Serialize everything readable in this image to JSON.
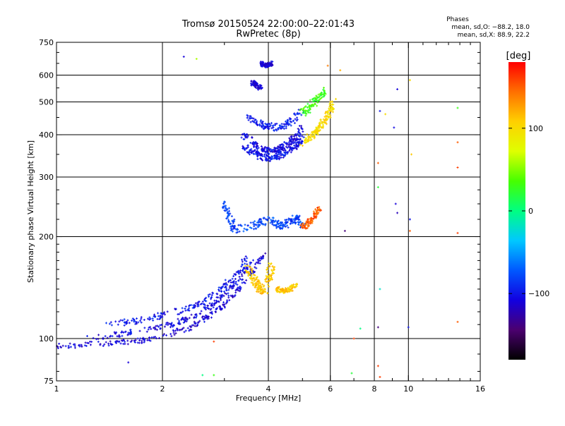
{
  "chart_data": {
    "type": "scatter",
    "title": "Tromsø 20150524 22:00:00–22:01:43",
    "subtitle": "RwPretec (8p)",
    "stats": {
      "heading": "Phases",
      "line_o": "mean, sd,O: −88.2, 18.0",
      "line_x": "mean, sd,X:  88.9, 22.2"
    },
    "xlabel": "Frequency [MHz]",
    "ylabel": "Stationary phase Virtual Height [km]",
    "xscale": "log",
    "yscale": "log",
    "xlim": [
      1,
      16
    ],
    "ylim": [
      75,
      750
    ],
    "xticks": [
      1,
      2,
      4,
      6,
      8,
      10,
      16
    ],
    "xtick_labels": [
      "1",
      "2",
      "4",
      "6",
      "8",
      "10",
      "16"
    ],
    "yticks": [
      75,
      100,
      200,
      300,
      400,
      500,
      600,
      750
    ],
    "ytick_labels": [
      "75",
      "100",
      "200",
      "300",
      "400",
      "500",
      "600",
      "750"
    ],
    "grid": true,
    "colorbar": {
      "label": "[deg]",
      "min": -180,
      "max": 180,
      "ticks": [
        100,
        0,
        -100
      ],
      "tick_labels": [
        "100",
        "0",
        "−100"
      ],
      "colors": [
        "#000000",
        "#4b006f",
        "#1200e0",
        "#0058ff",
        "#00c8ff",
        "#00ff82",
        "#46ff00",
        "#dfff00",
        "#ffd000",
        "#ff7000",
        "#ff0000"
      ]
    },
    "clusters": [
      {
        "name": "lower trace 1",
        "f": [
          1.0,
          1.2,
          1.5,
          1.8,
          2.1,
          2.4,
          2.7,
          3.0,
          3.3,
          3.6,
          3.9
        ],
        "h": [
          95,
          96,
          97,
          99,
          103,
          108,
          116,
          126,
          140,
          158,
          178
        ],
        "phase": -110,
        "spread": 0.03
      },
      {
        "name": "lower trace 2",
        "f": [
          1.2,
          1.5,
          1.8,
          2.1,
          2.4,
          2.7,
          3.0,
          3.3,
          3.6
        ],
        "h": [
          100,
          103,
          106,
          110,
          115,
          123,
          134,
          150,
          170
        ],
        "phase": -105,
        "spread": 0.03
      },
      {
        "name": "lower trace 3",
        "f": [
          1.4,
          1.7,
          2.0,
          2.3,
          2.6,
          2.9,
          3.2,
          3.5
        ],
        "h": [
          110,
          113,
          117,
          122,
          128,
          138,
          152,
          175
        ],
        "phase": -100,
        "spread": 0.035
      },
      {
        "name": "E-region cusp",
        "f": [
          3.5,
          3.6,
          3.7,
          3.8,
          3.9,
          4.0,
          4.1
        ],
        "h": [
          160,
          150,
          145,
          140,
          138,
          150,
          165
        ],
        "phase": 110,
        "spread": 0.05
      },
      {
        "name": "E-region tail",
        "f": [
          4.2,
          4.4,
          4.6,
          4.8
        ],
        "h": [
          140,
          138,
          140,
          145
        ],
        "phase": 110,
        "spread": 0.03
      },
      {
        "name": "mid band",
        "f": [
          3.0,
          3.1,
          3.2,
          3.6,
          3.8,
          4.0,
          4.2,
          4.4,
          4.6,
          4.8,
          5.0
        ],
        "h": [
          250,
          230,
          210,
          215,
          220,
          225,
          218,
          215,
          222,
          228,
          215
        ],
        "phase": -80,
        "spread": 0.04
      },
      {
        "name": "mid band warm",
        "f": [
          5.0,
          5.2,
          5.4,
          5.6
        ],
        "h": [
          212,
          220,
          230,
          245
        ],
        "phase": 150,
        "spread": 0.03
      },
      {
        "name": "F-region O trace",
        "f": [
          3.4,
          3.6,
          3.8,
          4.0,
          4.2,
          4.4,
          4.6,
          4.8,
          5.0
        ],
        "h": [
          400,
          380,
          365,
          358,
          360,
          368,
          380,
          395,
          420
        ],
        "phase": -105,
        "spread": 0.035
      },
      {
        "name": "F-region X trace",
        "f": [
          3.4,
          3.6,
          3.8,
          4.0,
          4.2,
          4.4,
          4.6,
          4.8,
          5.0
        ],
        "h": [
          370,
          355,
          345,
          340,
          342,
          350,
          360,
          372,
          390
        ],
        "phase": -100,
        "spread": 0.035
      },
      {
        "name": "F-region upper",
        "f": [
          3.5,
          3.8,
          4.1,
          4.4,
          4.7,
          5.0
        ],
        "h": [
          450,
          430,
          420,
          425,
          440,
          470
        ],
        "phase": -95,
        "spread": 0.04
      },
      {
        "name": "F-region cusp",
        "f": [
          5.0,
          5.2,
          5.4,
          5.6,
          5.8,
          6.0,
          6.1
        ],
        "h": [
          380,
          390,
          400,
          420,
          440,
          470,
          500
        ],
        "phase": 100,
        "spread": 0.04
      },
      {
        "name": "F-region cusp cyan",
        "f": [
          5.0,
          5.2,
          5.5,
          5.8
        ],
        "h": [
          460,
          480,
          510,
          540
        ],
        "phase": 30,
        "spread": 0.04
      },
      {
        "name": "high echoes",
        "f": [
          3.8,
          3.9,
          4.0,
          4.1
        ],
        "h": [
          650,
          640,
          645,
          650
        ],
        "phase": -110,
        "spread": 0.025
      },
      {
        "name": "high echoes 2",
        "f": [
          3.6,
          3.7,
          3.8
        ],
        "h": [
          570,
          560,
          550
        ],
        "phase": -110,
        "spread": 0.025
      }
    ],
    "scattered_points": [
      {
        "f": 2.3,
        "h": 680,
        "phase": -110
      },
      {
        "f": 2.5,
        "h": 670,
        "phase": 60
      },
      {
        "f": 5.9,
        "h": 640,
        "phase": 140
      },
      {
        "f": 6.4,
        "h": 620,
        "phase": 120
      },
      {
        "f": 10.1,
        "h": 580,
        "phase": 100
      },
      {
        "f": 9.3,
        "h": 545,
        "phase": -110
      },
      {
        "f": 8.3,
        "h": 470,
        "phase": -100
      },
      {
        "f": 8.6,
        "h": 460,
        "phase": 100
      },
      {
        "f": 9.1,
        "h": 420,
        "phase": -105
      },
      {
        "f": 13.8,
        "h": 480,
        "phase": 30
      },
      {
        "f": 13.8,
        "h": 380,
        "phase": 150
      },
      {
        "f": 10.2,
        "h": 350,
        "phase": 110
      },
      {
        "f": 8.2,
        "h": 330,
        "phase": 150
      },
      {
        "f": 13.8,
        "h": 320,
        "phase": 160
      },
      {
        "f": 8.2,
        "h": 280,
        "phase": 20
      },
      {
        "f": 9.2,
        "h": 250,
        "phase": -110
      },
      {
        "f": 9.3,
        "h": 235,
        "phase": -120
      },
      {
        "f": 10.1,
        "h": 225,
        "phase": -100
      },
      {
        "f": 10.1,
        "h": 208,
        "phase": 150
      },
      {
        "f": 13.8,
        "h": 205,
        "phase": 160
      },
      {
        "f": 6.6,
        "h": 208,
        "phase": -140
      },
      {
        "f": 8.3,
        "h": 140,
        "phase": -20
      },
      {
        "f": 13.8,
        "h": 112,
        "phase": 150
      },
      {
        "f": 8.2,
        "h": 108,
        "phase": -140
      },
      {
        "f": 7.3,
        "h": 107,
        "phase": 0
      },
      {
        "f": 10.0,
        "h": 108,
        "phase": -100
      },
      {
        "f": 7.0,
        "h": 100,
        "phase": 160
      },
      {
        "f": 8.2,
        "h": 83,
        "phase": 160
      },
      {
        "f": 8.3,
        "h": 77,
        "phase": 160
      },
      {
        "f": 2.8,
        "h": 98,
        "phase": 160
      },
      {
        "f": 2.6,
        "h": 78,
        "phase": 0
      },
      {
        "f": 2.8,
        "h": 78,
        "phase": 30
      },
      {
        "f": 6.9,
        "h": 79,
        "phase": 20
      },
      {
        "f": 1.6,
        "h": 85,
        "phase": -110
      }
    ]
  }
}
